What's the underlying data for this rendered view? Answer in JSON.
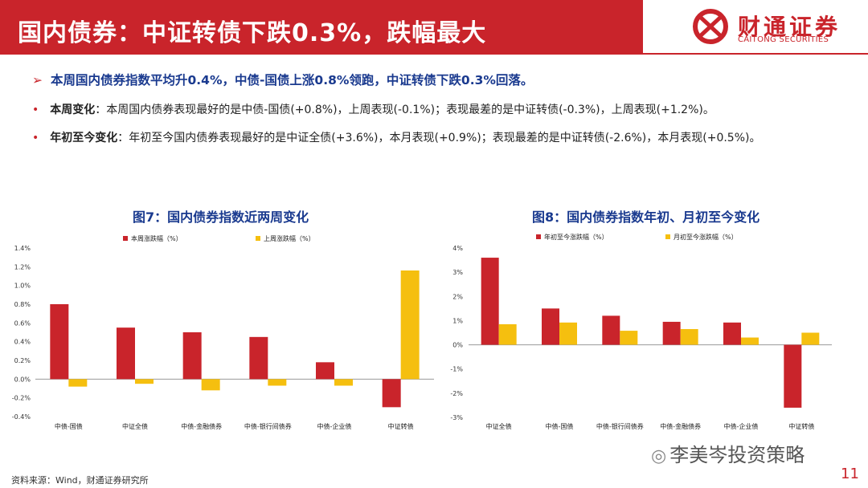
{
  "header": {
    "title": "国内债券：中证转债下跌0.3%，跌幅最大",
    "logo_cn": "财通证券",
    "logo_en": "CAITONG SECURITIES"
  },
  "bullets": {
    "main": "本周国内债券指数平均升0.4%，中债-国债上涨0.8%领跑，中证转债下跌0.3%回落。",
    "item1_label": "本周变化",
    "item1_text": "：本周国内债券表现最好的是中债-国债(+0.8%)，上周表现(-0.1%)；表现最差的是中证转债(-0.3%)，上周表现(+1.2%)。",
    "item2_label": "年初至今变化",
    "item2_text": "：年初至今国内债券表现最好的是中证全债(+3.6%)，本月表现(+0.9%)；表现最差的是中证转债(-2.6%)，本月表现(+0.5%)。"
  },
  "colors": {
    "red": "#c9242b",
    "yellow": "#f5bf0f",
    "navy": "#1a3a8f"
  },
  "chart_data": [
    {
      "type": "bar",
      "title": "图7：国内债券指数近两周变化",
      "categories": [
        "中债-国债",
        "中证全债",
        "中债-金融债券",
        "中债-银行间债券",
        "中债-企业债",
        "中证转债"
      ],
      "series": [
        {
          "name": "本周涨跌幅（%）",
          "values": [
            0.8,
            0.55,
            0.5,
            0.45,
            0.18,
            -0.3
          ]
        },
        {
          "name": "上周涨跌幅（%）",
          "values": [
            -0.08,
            -0.05,
            -0.12,
            -0.07,
            -0.07,
            1.16
          ]
        }
      ],
      "ylim": [
        -0.4,
        1.4
      ],
      "yticks": [
        "-0.4%",
        "-0.2%",
        "0.0%",
        "0.2%",
        "0.4%",
        "0.6%",
        "0.8%",
        "1.0%",
        "1.2%",
        "1.4%"
      ],
      "legend": "top"
    },
    {
      "type": "bar",
      "title": "图8：国内债券指数年初、月初至今变化",
      "categories": [
        "中证全债",
        "中债-国债",
        "中债-银行间债券",
        "中债-金融债券",
        "中债-企业债",
        "中证转债"
      ],
      "series": [
        {
          "name": "年初至今涨跌幅（%）",
          "values": [
            3.6,
            1.5,
            1.2,
            0.95,
            0.92,
            -2.6
          ]
        },
        {
          "name": "月初至今涨跌幅（%）",
          "values": [
            0.85,
            0.92,
            0.58,
            0.65,
            0.3,
            0.5
          ]
        }
      ],
      "ylim": [
        -3,
        4
      ],
      "yticks": [
        "-3%",
        "-2%",
        "-1%",
        "0%",
        "1%",
        "2%",
        "3%",
        "4%"
      ],
      "legend": "top"
    }
  ],
  "footer": {
    "source": "资料来源：Wind，财通证券研究所",
    "watermark": "李美岑投资策略",
    "page": "11"
  }
}
